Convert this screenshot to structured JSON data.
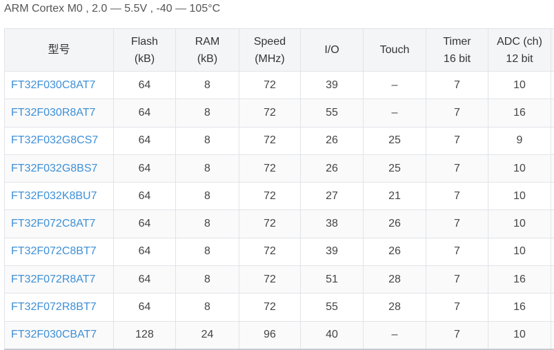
{
  "subtitle": "ARM Cortex M0 , 2.0 — 5.5V , -40 — 105°C",
  "colors": {
    "link": "#3d8fd6",
    "header_bg": "#f4f5f7"
  },
  "headers": [
    [
      "型号",
      ""
    ],
    [
      "Flash",
      "(kB)"
    ],
    [
      "RAM",
      "(kB)"
    ],
    [
      "Speed",
      "(MHz)"
    ],
    [
      "I/O",
      ""
    ],
    [
      "Touch",
      ""
    ],
    [
      "Timer",
      "16 bit"
    ],
    [
      "ADC (ch)",
      "12 bit"
    ]
  ],
  "rows": [
    [
      "FT32F030C8AT7",
      "64",
      "8",
      "72",
      "39",
      "–",
      "7",
      "10"
    ],
    [
      "FT32F030R8AT7",
      "64",
      "8",
      "72",
      "55",
      "–",
      "7",
      "16"
    ],
    [
      "FT32F032G8CS7",
      "64",
      "8",
      "72",
      "26",
      "25",
      "7",
      "9"
    ],
    [
      "FT32F032G8BS7",
      "64",
      "8",
      "72",
      "26",
      "25",
      "7",
      "10"
    ],
    [
      "FT32F032K8BU7",
      "64",
      "8",
      "72",
      "27",
      "21",
      "7",
      "10"
    ],
    [
      "FT32F072C8AT7",
      "64",
      "8",
      "72",
      "38",
      "26",
      "7",
      "10"
    ],
    [
      "FT32F072C8BT7",
      "64",
      "8",
      "72",
      "39",
      "26",
      "7",
      "10"
    ],
    [
      "FT32F072R8AT7",
      "64",
      "8",
      "72",
      "51",
      "28",
      "7",
      "16"
    ],
    [
      "FT32F072R8BT7",
      "64",
      "8",
      "72",
      "55",
      "28",
      "7",
      "16"
    ],
    [
      "FT32F030CBAT7",
      "128",
      "24",
      "96",
      "40",
      "–",
      "7",
      "10"
    ]
  ]
}
